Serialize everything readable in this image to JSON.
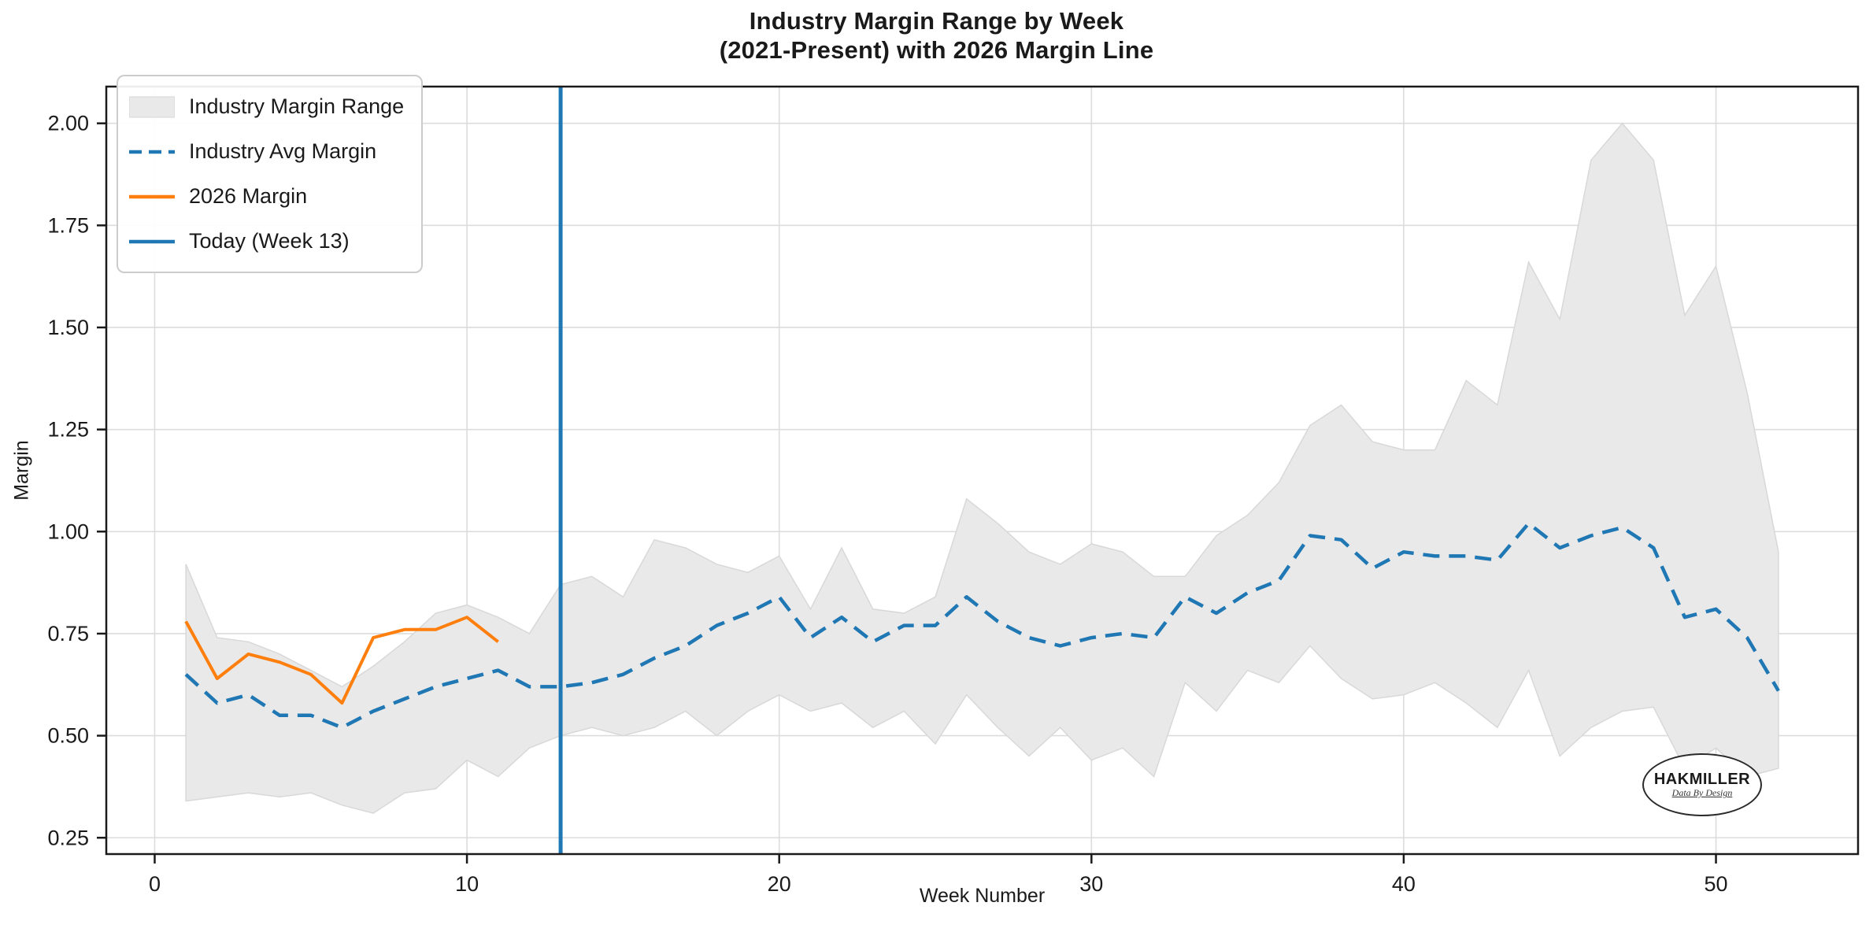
{
  "header": {
    "title_line1": "Industry Margin Range by Week",
    "title_line2": "(2021-Present) with 2026 Margin Line"
  },
  "axes": {
    "xlabel": "Week Number",
    "ylabel": "Margin",
    "xtick_labels": [
      "0",
      "10",
      "20",
      "30",
      "40",
      "50"
    ],
    "ytick_labels": [
      "0.25",
      "0.50",
      "0.75",
      "1.00",
      "1.25",
      "1.50",
      "1.75",
      "2.00"
    ]
  },
  "legend": {
    "items": [
      {
        "label": "Industry Margin Range",
        "type": "band",
        "color": "#e9e9e9"
      },
      {
        "label": "Industry Avg Margin",
        "type": "dashed",
        "color": "#1f77b4"
      },
      {
        "label": "2026 Margin",
        "type": "solid",
        "color": "#ff7f0e"
      },
      {
        "label": "Today (Week 13)",
        "type": "solid",
        "color": "#1f77b4"
      }
    ]
  },
  "watermark": {
    "name": "HAKMILLER",
    "tagline": "Data By Design"
  },
  "colors": {
    "avg_line": "#1f77b4",
    "margin_2026_line": "#ff7f0e",
    "today_line": "#1f77b4",
    "band_fill": "#e9e9e9",
    "band_edge": "#d8d8d8",
    "grid": "#dcdcdc",
    "spine": "#1a1a1a",
    "text": "#1a1a1a"
  },
  "chart_data": {
    "type": "area",
    "title": "Industry Margin Range by Week (2021-Present) with 2026 Margin Line",
    "xlabel": "Week Number",
    "ylabel": "Margin",
    "xlim": [
      -1.55,
      54.55
    ],
    "ylim": [
      0.21,
      2.09
    ],
    "xticks": [
      0,
      10,
      20,
      30,
      40,
      50
    ],
    "yticks": [
      0.25,
      0.5,
      0.75,
      1.0,
      1.25,
      1.5,
      1.75,
      2.0
    ],
    "grid": true,
    "legend_position": "upper left",
    "weeks": [
      1,
      2,
      3,
      4,
      5,
      6,
      7,
      8,
      9,
      10,
      11,
      12,
      13,
      14,
      15,
      16,
      17,
      18,
      19,
      20,
      21,
      22,
      23,
      24,
      25,
      26,
      27,
      28,
      29,
      30,
      31,
      32,
      33,
      34,
      35,
      36,
      37,
      38,
      39,
      40,
      41,
      42,
      43,
      44,
      45,
      46,
      47,
      48,
      49,
      50,
      51,
      52
    ],
    "series": [
      {
        "name": "Industry Margin Range",
        "type": "band",
        "max": [
          0.92,
          0.74,
          0.73,
          0.7,
          0.66,
          0.62,
          0.67,
          0.73,
          0.8,
          0.82,
          0.79,
          0.75,
          0.87,
          0.89,
          0.84,
          0.98,
          0.96,
          0.92,
          0.9,
          0.94,
          0.81,
          0.96,
          0.81,
          0.8,
          0.84,
          1.08,
          1.02,
          0.95,
          0.92,
          0.97,
          0.95,
          0.89,
          0.89,
          0.99,
          1.04,
          1.12,
          1.26,
          1.31,
          1.22,
          1.2,
          1.2,
          1.37,
          1.31,
          1.66,
          1.52,
          1.91,
          2.0,
          1.91,
          1.53,
          1.65,
          1.34,
          0.95
        ],
        "min": [
          0.34,
          0.35,
          0.36,
          0.35,
          0.36,
          0.33,
          0.31,
          0.36,
          0.37,
          0.44,
          0.4,
          0.47,
          0.5,
          0.52,
          0.5,
          0.52,
          0.56,
          0.5,
          0.56,
          0.6,
          0.56,
          0.58,
          0.52,
          0.56,
          0.48,
          0.6,
          0.52,
          0.45,
          0.52,
          0.44,
          0.47,
          0.4,
          0.63,
          0.56,
          0.66,
          0.63,
          0.72,
          0.64,
          0.59,
          0.6,
          0.63,
          0.58,
          0.52,
          0.66,
          0.45,
          0.52,
          0.56,
          0.57,
          0.42,
          0.47,
          0.4,
          0.42
        ]
      },
      {
        "name": "Industry Avg Margin",
        "type": "line",
        "style": "dashed",
        "values": [
          0.65,
          0.58,
          0.6,
          0.55,
          0.55,
          0.52,
          0.56,
          0.59,
          0.62,
          0.64,
          0.66,
          0.62,
          0.62,
          0.63,
          0.65,
          0.69,
          0.72,
          0.77,
          0.8,
          0.84,
          0.74,
          0.79,
          0.73,
          0.77,
          0.77,
          0.84,
          0.78,
          0.74,
          0.72,
          0.74,
          0.75,
          0.74,
          0.84,
          0.8,
          0.85,
          0.88,
          0.99,
          0.98,
          0.91,
          0.95,
          0.94,
          0.94,
          0.93,
          1.02,
          0.96,
          0.99,
          1.01,
          0.96,
          0.79,
          0.81,
          0.74,
          0.61
        ]
      },
      {
        "name": "2026 Margin",
        "type": "line",
        "style": "solid",
        "x": [
          1,
          2,
          3,
          4,
          5,
          6,
          7,
          8,
          9,
          10,
          11
        ],
        "values": [
          0.78,
          0.64,
          0.7,
          0.68,
          0.65,
          0.58,
          0.74,
          0.76,
          0.76,
          0.79,
          0.73
        ]
      },
      {
        "name": "Today (Week 13)",
        "type": "vline",
        "x": 13
      }
    ]
  }
}
